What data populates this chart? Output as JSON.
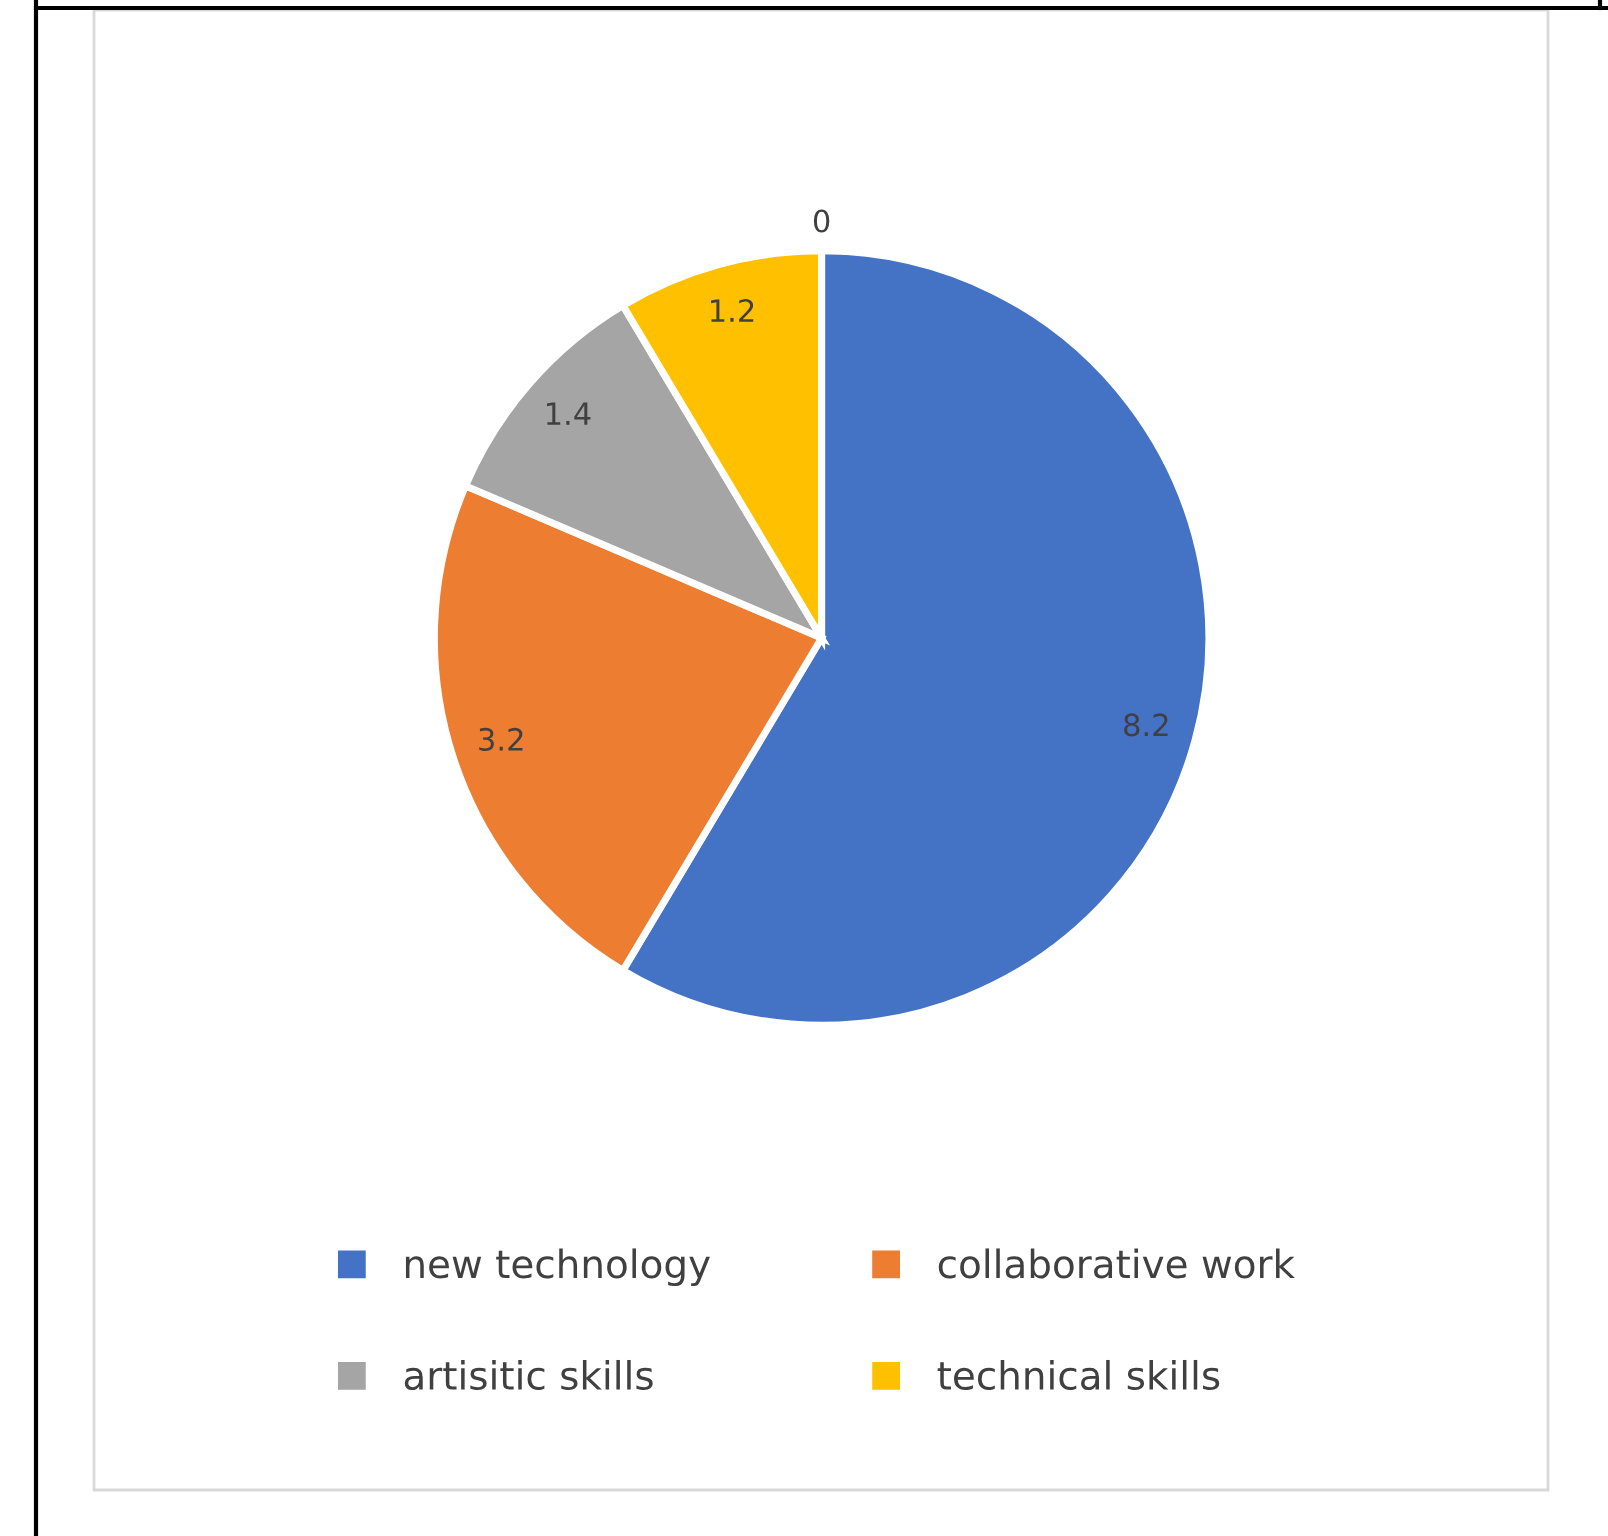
{
  "chart_data": {
    "type": "pie",
    "categories": [
      "new technology",
      "collaborative work",
      "artisitic skills",
      "technical skills",
      null
    ],
    "values": [
      8.2,
      3.2,
      1.4,
      1.2,
      0
    ],
    "colors": [
      "#4472c4",
      "#ed7d31",
      "#a5a5a5",
      "#ffc000",
      "#5b9bd5"
    ],
    "value_labels": [
      "8.2",
      "3.2",
      "1.4",
      "1.2",
      "0"
    ],
    "legend": "bottom"
  }
}
